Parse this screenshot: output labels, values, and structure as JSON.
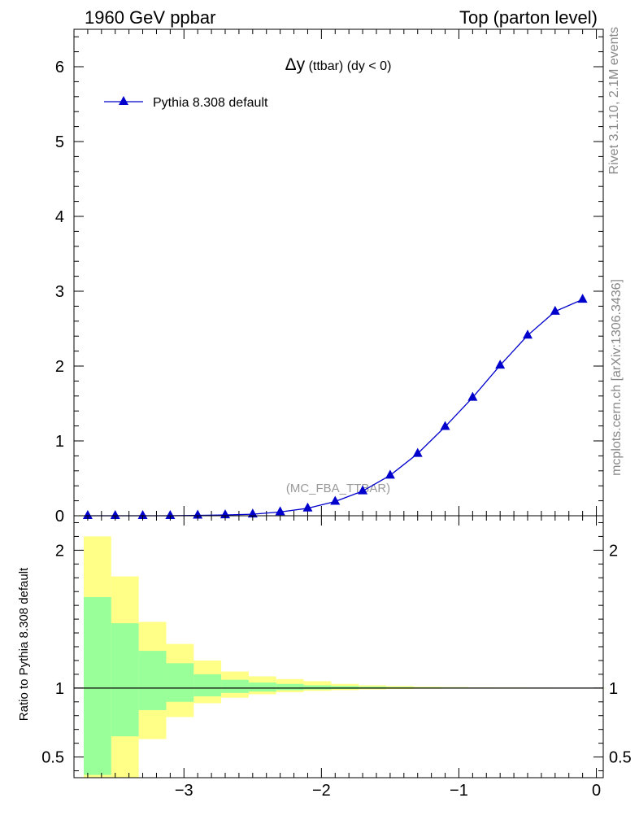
{
  "header": {
    "left": "1960 GeV ppbar",
    "right": "Top (parton level)"
  },
  "side_labels": {
    "rivet": "Rivet 3.1.10,  2.1M events",
    "mcplots": "mcplots.cern.ch [arXiv:1306.3436]"
  },
  "watermark": "(MC_FBA_TTBAR)",
  "chart_data": [
    {
      "type": "line",
      "title_main": "Δy",
      "title_sub": " (ttbar) (dy < 0)",
      "xlim": [
        -3.8,
        0.05
      ],
      "ylim": [
        0,
        6.5
      ],
      "yticks": [
        0,
        1,
        2,
        3,
        4,
        5,
        6
      ],
      "legend_position": "top-left",
      "color": "#0000cc",
      "series": [
        {
          "name": "Pythia 8.308 default",
          "x": [
            -3.7,
            -3.5,
            -3.3,
            -3.1,
            -2.9,
            -2.7,
            -2.5,
            -2.3,
            -2.1,
            -1.9,
            -1.7,
            -1.5,
            -1.3,
            -1.1,
            -0.9,
            -0.7,
            -0.5,
            -0.3,
            -0.1
          ],
          "y": [
            0.0,
            0.0,
            0.0,
            0.0,
            0.005,
            0.01,
            0.02,
            0.05,
            0.1,
            0.19,
            0.33,
            0.54,
            0.83,
            1.19,
            1.58,
            2.01,
            2.41,
            2.73,
            2.89
          ]
        }
      ]
    },
    {
      "type": "area",
      "ylabel": "Ratio to Pythia 8.308 default",
      "xlim": [
        -3.8,
        0.05
      ],
      "ylim": [
        0.35,
        2.25
      ],
      "yticks": [
        0.5,
        1,
        2
      ],
      "xticks": [
        -3,
        -2,
        -1,
        0
      ],
      "xticklabels": [
        "−3",
        "−2",
        "−1",
        "0"
      ],
      "bins": [
        [
          -3.8,
          -3.6
        ],
        [
          -3.6,
          -3.4
        ],
        [
          -3.4,
          -3.2
        ],
        [
          -3.2,
          -3.0
        ],
        [
          -3.0,
          -2.8
        ],
        [
          -2.8,
          -2.6
        ],
        [
          -2.6,
          -2.4
        ],
        [
          -2.4,
          -2.2
        ],
        [
          -2.2,
          -2.0
        ],
        [
          -2.0,
          -1.8
        ],
        [
          -1.8,
          -1.6
        ],
        [
          -1.6,
          -1.4
        ],
        [
          -1.4,
          -1.2
        ],
        [
          -1.2,
          -1.0
        ],
        [
          -1.0,
          -0.8
        ],
        [
          -0.8,
          -0.6
        ],
        [
          -0.6,
          -0.4
        ],
        [
          -0.4,
          -0.2
        ],
        [
          -0.2,
          0.0
        ]
      ],
      "bands": [
        {
          "color": "#ffff88",
          "lo": [
            0.35,
            0.35,
            0.63,
            0.79,
            0.89,
            0.93,
            0.955,
            0.97,
            0.98,
            0.985,
            0.99,
            0.993,
            0.995,
            0.996,
            0.997,
            0.998,
            0.998,
            0.999,
            0.999
          ],
          "hi": [
            2.1,
            1.81,
            1.48,
            1.32,
            1.2,
            1.12,
            1.085,
            1.065,
            1.05,
            1.03,
            1.02,
            1.015,
            1.01,
            1.007,
            1.005,
            1.004,
            1.003,
            1.002,
            1.002
          ]
        },
        {
          "color": "#99ff99",
          "lo": [
            0.37,
            0.65,
            0.84,
            0.9,
            0.94,
            0.965,
            0.975,
            0.985,
            0.99,
            0.993,
            0.995,
            0.996,
            0.997,
            0.998,
            0.998,
            0.999,
            0.999,
            0.999,
            0.999
          ],
          "hi": [
            1.66,
            1.47,
            1.27,
            1.18,
            1.1,
            1.06,
            1.04,
            1.03,
            1.02,
            1.015,
            1.01,
            1.007,
            1.005,
            1.004,
            1.003,
            1.002,
            1.002,
            1.001,
            1.001
          ]
        }
      ],
      "reference_line": 1
    }
  ]
}
